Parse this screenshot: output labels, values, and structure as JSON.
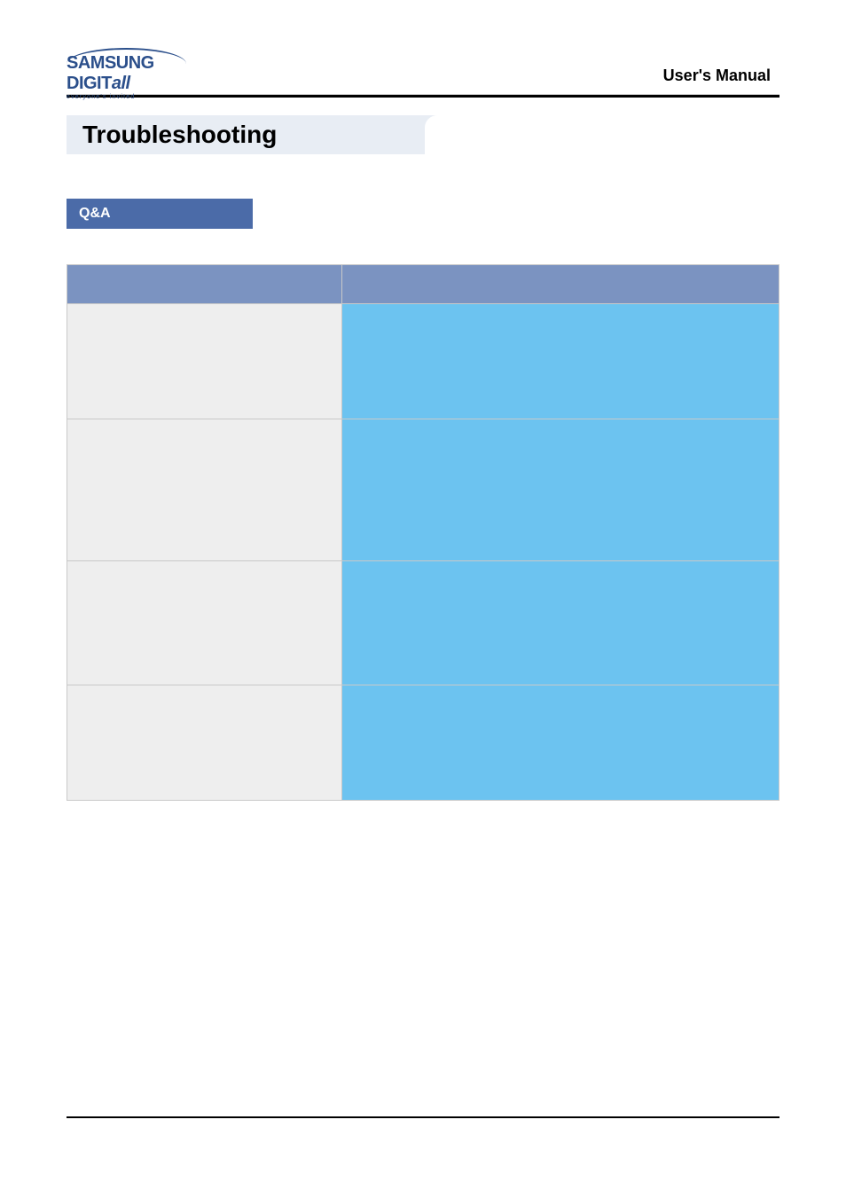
{
  "header": {
    "logo_main": "SAMSUNG DIGIT",
    "logo_italic": "all",
    "logo_tagline": "everyone's invited",
    "manual_label": "User's Manual"
  },
  "title": "Troubleshooting",
  "section_badge": "Q&A",
  "qa_table": {
    "header_q": "",
    "header_a": "",
    "rows": [
      {
        "q": "",
        "a": ""
      },
      {
        "q": "",
        "a": ""
      },
      {
        "q": "",
        "a": ""
      },
      {
        "q": "",
        "a": ""
      }
    ]
  },
  "colors": {
    "title_bg": "#e8edf4",
    "badge_bg": "#4b6ba8",
    "th_bg": "#7b93c1",
    "qcell_bg": "#eeeeee",
    "acell_bg": "#6cc3f0",
    "border": "#c9c9c9",
    "logo_color": "#2b4f8b"
  }
}
